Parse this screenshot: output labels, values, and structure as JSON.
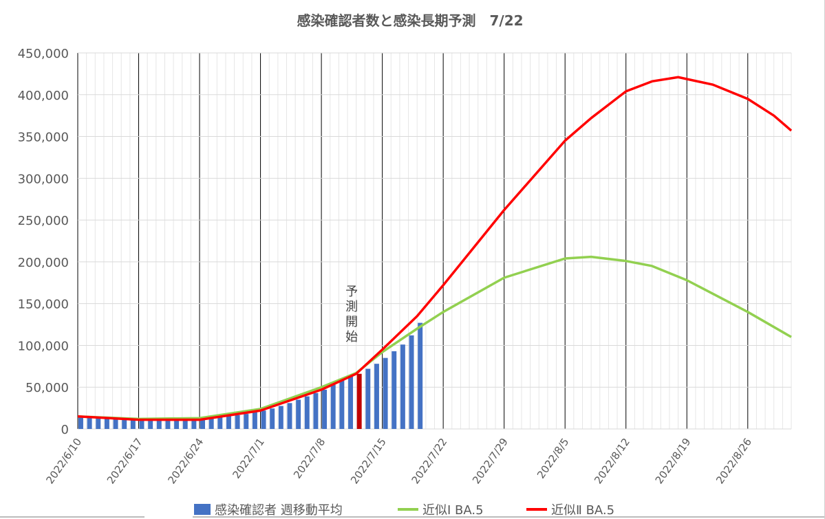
{
  "chart_data": {
    "type": "bar+line",
    "title": "感染確認者数と感染長期予測　7/22",
    "xlabel": "",
    "ylabel": "",
    "ylim": [
      0,
      450000
    ],
    "yticks": [
      "0",
      "50,000",
      "100,000",
      "150,000",
      "200,000",
      "250,000",
      "300,000",
      "350,000",
      "400,000",
      "450,000"
    ],
    "ytick_values": [
      0,
      50000,
      100000,
      150000,
      200000,
      250000,
      300000,
      350000,
      400000,
      450000
    ],
    "x_start": "2022/6/10",
    "x_days": 82,
    "xticks": [
      "2022/6/10",
      "2022/6/17",
      "2022/6/24",
      "2022/7/1",
      "2022/7/8",
      "2022/7/15",
      "2022/7/22",
      "2022/7/29",
      "2022/8/5",
      "2022/8/12",
      "2022/8/19",
      "2022/8/26"
    ],
    "grid": true,
    "legend_position": "bottom",
    "annotation": "予測開始",
    "annotation_day": 32,
    "series": [
      {
        "name": "感染確認者 週移動平均",
        "type": "bar",
        "color": "#4472C4",
        "highlight_index": 32,
        "highlight_color": "#C00000",
        "values": [
          14000,
          13500,
          13000,
          12500,
          12200,
          12000,
          12000,
          12200,
          12500,
          12800,
          13000,
          13000,
          13100,
          13200,
          13500,
          14000,
          14500,
          15500,
          16500,
          18000,
          20000,
          22000,
          24500,
          27500,
          31000,
          35000,
          39000,
          43000,
          47000,
          53000,
          59000,
          63000,
          66000,
          72000,
          78000,
          85000,
          93000,
          101000,
          112000,
          127000
        ]
      },
      {
        "name": "近似Ⅰ BA.5",
        "type": "line",
        "color": "#92D050",
        "points": [
          [
            0,
            15000
          ],
          [
            7,
            12000
          ],
          [
            14,
            13000
          ],
          [
            21,
            24000
          ],
          [
            28,
            50000
          ],
          [
            32,
            67000
          ],
          [
            35,
            92000
          ],
          [
            39,
            120000
          ],
          [
            42,
            140000
          ],
          [
            49,
            181000
          ],
          [
            56,
            204000
          ],
          [
            59,
            206000
          ],
          [
            63,
            201000
          ],
          [
            66,
            195000
          ],
          [
            70,
            178000
          ],
          [
            77,
            140000
          ],
          [
            82,
            110000
          ]
        ]
      },
      {
        "name": "近似Ⅱ BA.5",
        "type": "line",
        "color": "#FF0000",
        "points": [
          [
            0,
            15000
          ],
          [
            7,
            11000
          ],
          [
            14,
            11000
          ],
          [
            21,
            22000
          ],
          [
            28,
            47000
          ],
          [
            32,
            66000
          ],
          [
            35,
            95000
          ],
          [
            39,
            135000
          ],
          [
            42,
            172000
          ],
          [
            49,
            262000
          ],
          [
            56,
            345000
          ],
          [
            59,
            372000
          ],
          [
            63,
            404000
          ],
          [
            66,
            416000
          ],
          [
            69,
            421000
          ],
          [
            73,
            412000
          ],
          [
            77,
            395000
          ],
          [
            80,
            375000
          ],
          [
            82,
            357000
          ]
        ]
      }
    ]
  }
}
